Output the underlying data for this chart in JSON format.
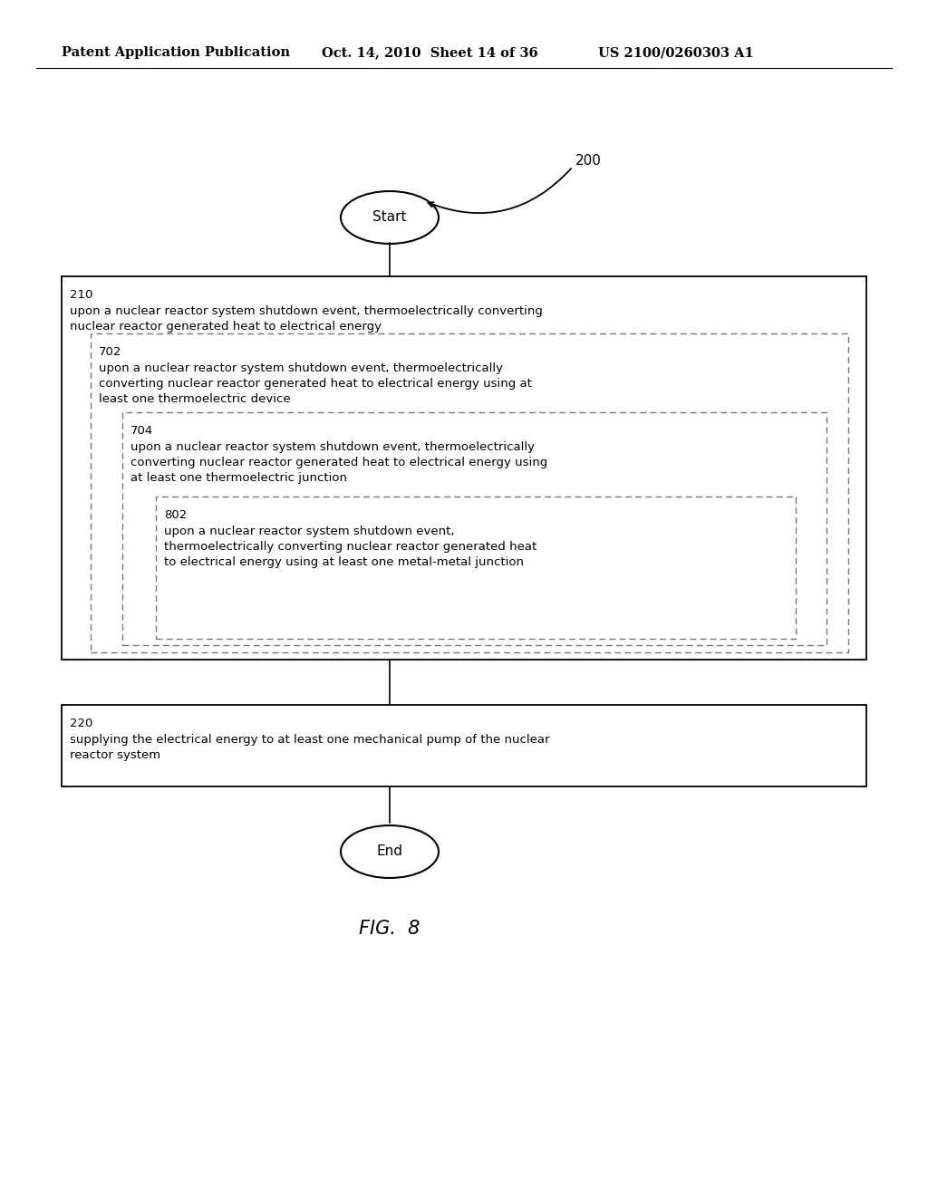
{
  "bg_color": "#ffffff",
  "header_left": "Patent Application Publication",
  "header_mid": "Oct. 14, 2010  Sheet 14 of 36",
  "header_right": "US 2100/0260303 A1",
  "fig_label": "FIG.  8",
  "label_200": "200",
  "start_label": "Start",
  "end_label": "End",
  "box210_id": "210",
  "box210_text": "upon a nuclear reactor system shutdown event, thermoelectrically converting\nnuclear reactor generated heat to electrical energy",
  "box702_id": "702",
  "box702_text": "upon a nuclear reactor system shutdown event, thermoelectrically\nconverting nuclear reactor generated heat to electrical energy using at\nleast one thermoelectric device",
  "box704_id": "704",
  "box704_text": "upon a nuclear reactor system shutdown event, thermoelectrically\nconverting nuclear reactor generated heat to electrical energy using\nat least one thermoelectric junction",
  "box802_id": "802",
  "box802_text": "upon a nuclear reactor system shutdown event,\nthermoelectrically converting nuclear reactor generated heat\nto electrical energy using at least one metal-metal junction",
  "box220_id": "220",
  "box220_text": "supplying the electrical energy to at least one mechanical pump of the nuclear\nreactor system",
  "text_color": "#000000",
  "font_size_header": 10.5,
  "font_size_body": 9.5,
  "font_size_id": 9.5,
  "font_size_fig": 15,
  "font_size_oval": 11,
  "font_size_200": 11
}
